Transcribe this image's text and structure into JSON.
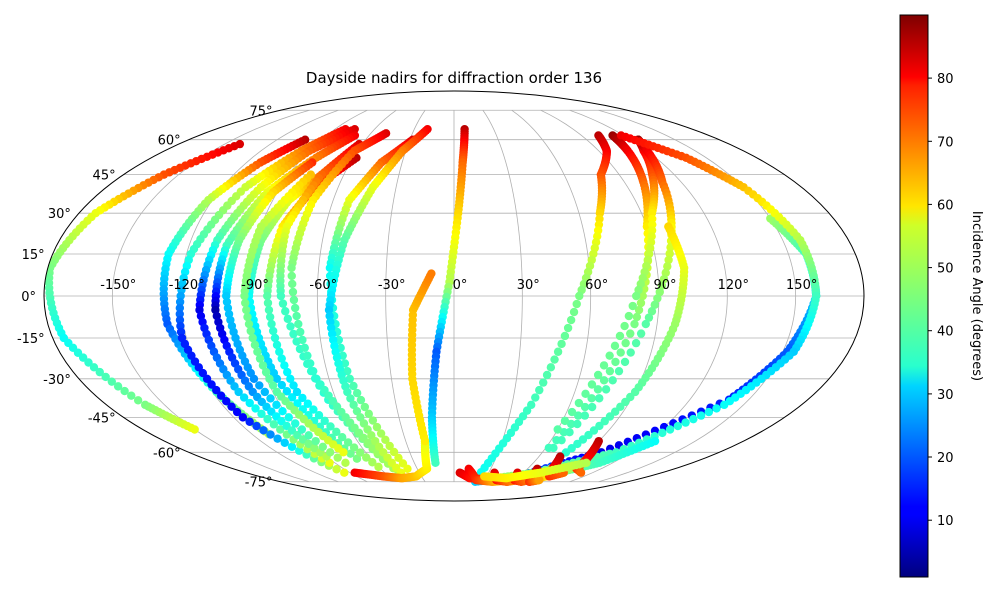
{
  "chart_data": {
    "type": "scatter",
    "projection": "mollweide",
    "title": "Dayside nadirs for diffraction order 136",
    "x_label": "",
    "y_label": "",
    "x_ticks": [
      "-150°",
      "-120°",
      "-90°",
      "-60°",
      "-30°",
      "0°",
      "30°",
      "60°",
      "90°",
      "120°",
      "150°"
    ],
    "x_tick_values": [
      -150,
      -120,
      -90,
      -60,
      -30,
      0,
      30,
      60,
      90,
      120,
      150
    ],
    "y_ticks": [
      "75°",
      "60°",
      "45°",
      "30°",
      "15°",
      "0°",
      "-15°",
      "-30°",
      "-45°",
      "-60°",
      "-75°"
    ],
    "y_tick_values": [
      75,
      60,
      45,
      30,
      15,
      0,
      -15,
      -30,
      -45,
      -60,
      -75
    ],
    "grid": true,
    "colorbar": {
      "label": "Incidence Angle (degrees)",
      "ticks": [
        "10",
        "20",
        "30",
        "40",
        "50",
        "60",
        "70",
        "80"
      ],
      "tick_values": [
        10,
        20,
        30,
        40,
        50,
        60,
        70,
        80
      ],
      "range": [
        1,
        90
      ],
      "colormap": "jet"
    },
    "tracks": [
      {
        "lon": [
          -140,
          -158,
          -172,
          -179,
          -175,
          -160,
          -150
        ],
        "lat": [
          58,
          45,
          30,
          10,
          -15,
          -40,
          -50
        ],
        "inc": [
          82,
          72,
          55,
          45,
          35,
          45,
          55
        ]
      },
      {
        "lon": [
          -101,
          -112,
          -122,
          -128,
          -127,
          -118,
          -110
        ],
        "lat": [
          60,
          50,
          35,
          15,
          -10,
          -35,
          -52
        ],
        "inc": [
          85,
          72,
          50,
          35,
          20,
          40,
          50
        ]
      },
      {
        "lon": [
          -82,
          -95,
          -108,
          -118,
          -122,
          -115,
          -95
        ],
        "lat": [
          65,
          55,
          40,
          15,
          -15,
          -45,
          -70
        ],
        "inc": [
          80,
          68,
          52,
          38,
          15,
          12,
          55
        ]
      },
      {
        "lon": [
          -75,
          -90,
          -100,
          -108,
          -112,
          -107,
          -94
        ],
        "lat": [
          65,
          55,
          40,
          20,
          -5,
          -35,
          -65
        ],
        "inc": [
          82,
          70,
          55,
          40,
          10,
          30,
          55
        ]
      },
      {
        "lon": [
          -70,
          -82,
          -95,
          -103,
          -105,
          -100,
          -90
        ],
        "lat": [
          62,
          52,
          38,
          18,
          -5,
          -35,
          -62
        ],
        "inc": [
          80,
          68,
          55,
          40,
          5,
          25,
          50
        ]
      },
      {
        "lon": [
          -82,
          -92,
          -98,
          -100,
          -96,
          -82
        ],
        "lat": [
          50,
          38,
          20,
          0,
          -30,
          -65
        ],
        "inc": [
          75,
          60,
          45,
          30,
          25,
          50
        ]
      },
      {
        "lon": [
          -72,
          -82,
          -88,
          -90,
          -85,
          -70
        ],
        "lat": [
          45,
          35,
          20,
          0,
          -30,
          -63
        ],
        "inc": [
          70,
          55,
          45,
          35,
          30,
          45
        ]
      },
      {
        "lon": [
          -78,
          -90,
          -92,
          -88,
          -75
        ],
        "lat": [
          45,
          25,
          0,
          -35,
          -60
        ],
        "inc": [
          62,
          50,
          45,
          42,
          55
        ]
      },
      {
        "lon": [
          -58,
          -72,
          -80,
          -82,
          -78,
          -60
        ],
        "lat": [
          52,
          40,
          25,
          0,
          -35,
          -67
        ],
        "inc": [
          85,
          72,
          58,
          42,
          32,
          50
        ]
      },
      {
        "lon": [
          -62,
          -72,
          -78,
          -76,
          -64,
          -48
        ],
        "lat": [
          58,
          45,
          25,
          0,
          -38,
          -70
        ],
        "inc": [
          82,
          70,
          55,
          40,
          38,
          50
        ]
      },
      {
        "lon": [
          -49,
          -62,
          -70,
          -72,
          -66,
          -52
        ],
        "lat": [
          63,
          55,
          35,
          10,
          -30,
          -60
        ],
        "inc": [
          82,
          72,
          58,
          45,
          38,
          48
        ]
      },
      {
        "lon": [
          -28,
          -42,
          -52,
          -55,
          -50,
          -38
        ],
        "lat": [
          60,
          50,
          35,
          10,
          -30,
          -68
        ],
        "inc": [
          82,
          70,
          55,
          35,
          40,
          55
        ]
      },
      {
        "lon": [
          -20,
          -32,
          -42,
          -50,
          -55,
          -53,
          -46
        ],
        "lat": [
          65,
          55,
          40,
          20,
          -5,
          -35,
          -70
        ],
        "inc": [
          80,
          68,
          55,
          42,
          30,
          40,
          55
        ]
      },
      {
        "lon": [
          -86,
          -65,
          -50,
          -35,
          -22,
          -18
        ],
        "lat": [
          -70,
          -72,
          -73,
          -72,
          -68,
          -55
        ],
        "inc": [
          80,
          72,
          65,
          62,
          58,
          55
        ]
      },
      {
        "lon": [
          -18,
          -20,
          -18,
          -10
        ],
        "lat": [
          -55,
          -30,
          -5,
          8
        ],
        "inc": [
          58,
          60,
          62,
          68
        ]
      },
      {
        "lon": [
          8,
          5,
          2,
          -2,
          -8,
          -12,
          -14
        ],
        "lat": [
          65,
          50,
          30,
          5,
          -20,
          -45,
          -65
        ],
        "inc": [
          85,
          70,
          60,
          50,
          20,
          30,
          40
        ]
      },
      {
        "lon": [
          102,
          95,
          80,
          70,
          55,
          40,
          22
        ],
        "lat": [
          62,
          55,
          45,
          30,
          0,
          -40,
          -72
        ],
        "inc": [
          85,
          80,
          72,
          60,
          45,
          40,
          35
        ]
      },
      {
        "lon": [
          112,
          108,
          100,
          90,
          80,
          62
        ],
        "lat": [
          62,
          55,
          42,
          25,
          -10,
          -58
        ],
        "inc": [
          88,
          80,
          70,
          58,
          45,
          40
        ]
      },
      {
        "lon": [
          125,
          118,
          108,
          95,
          80,
          60
        ],
        "lat": [
          60,
          55,
          45,
          30,
          0,
          -50
        ],
        "inc": [
          88,
          80,
          72,
          58,
          45,
          42
        ]
      },
      {
        "lon": [
          125,
          120,
          110,
          100,
          85,
          65
        ],
        "lat": [
          60,
          55,
          42,
          22,
          -10,
          -58
        ],
        "inc": [
          88,
          80,
          70,
          55,
          42,
          40
        ]
      },
      {
        "lon": [
          100,
          102,
          98,
          90,
          75
        ],
        "lat": [
          25,
          10,
          -10,
          -35,
          -62
        ],
        "inc": [
          60,
          55,
          48,
          42,
          38
        ]
      },
      {
        "lon": [
          150,
          158,
          159,
          152,
          140,
          100,
          60,
          22
        ],
        "lat": [
          28,
          15,
          0,
          -20,
          -38,
          -60,
          -72,
          -75
        ],
        "inc": [
          48,
          40,
          30,
          20,
          15,
          10,
          20,
          30
        ]
      },
      {
        "lon": [
          118,
          138,
          150,
          158,
          159,
          155,
          140,
          110,
          70,
          30
        ],
        "lat": [
          62,
          52,
          40,
          20,
          0,
          -20,
          -40,
          -60,
          -70,
          -74
        ],
        "inc": [
          80,
          72,
          62,
          50,
          40,
          30,
          35,
          40,
          45,
          50
        ]
      },
      {
        "lon": [
          90,
          110,
          125
        ],
        "lat": [
          -70,
          -65,
          -55
        ],
        "inc": [
          45,
          40,
          35
        ]
      },
      {
        "lon": [
          5,
          15,
          40,
          60,
          80,
          100
        ],
        "lat": [
          -70,
          -73,
          -74,
          -73,
          -70,
          -65
        ],
        "inc": [
          82,
          78,
          70,
          60,
          50,
          45
        ]
      },
      {
        "lon": [
          12,
          22,
          40,
          60,
          85,
          95
        ],
        "lat": [
          -68,
          -74,
          -75,
          -74,
          -70,
          -68
        ],
        "inc": [
          80,
          75,
          65,
          55,
          50,
          48
        ]
      },
      {
        "lon": [
          35,
          42,
          55,
          75,
          90
        ],
        "lat": [
          -70,
          -74,
          -75,
          -73,
          -70
        ],
        "inc": [
          82,
          78,
          70,
          60,
          55
        ]
      },
      {
        "lon": [
          55,
          60,
          70,
          85,
          95
        ],
        "lat": [
          -70,
          -74,
          -75,
          -72,
          -70
        ],
        "inc": [
          82,
          78,
          72,
          60,
          55
        ]
      },
      {
        "lon": [
          68,
          72,
          78,
          85
        ],
        "lat": [
          -68,
          -72,
          -75,
          -74
        ],
        "inc": [
          85,
          80,
          75,
          65
        ]
      },
      {
        "lon": [
          75,
          80,
          88,
          95
        ],
        "lat": [
          -62,
          -68,
          -72,
          -70
        ],
        "inc": [
          85,
          80,
          75,
          70
        ]
      },
      {
        "lon": [
          90,
          95,
          100,
          110
        ],
        "lat": [
          -55,
          -62,
          -68,
          -70
        ],
        "inc": [
          85,
          80,
          75,
          70
        ]
      },
      {
        "lon": [
          28,
          50,
          75,
          100
        ],
        "lat": [
          -72,
          -73,
          -70,
          -65
        ],
        "inc": [
          60,
          58,
          55,
          50
        ]
      }
    ]
  }
}
